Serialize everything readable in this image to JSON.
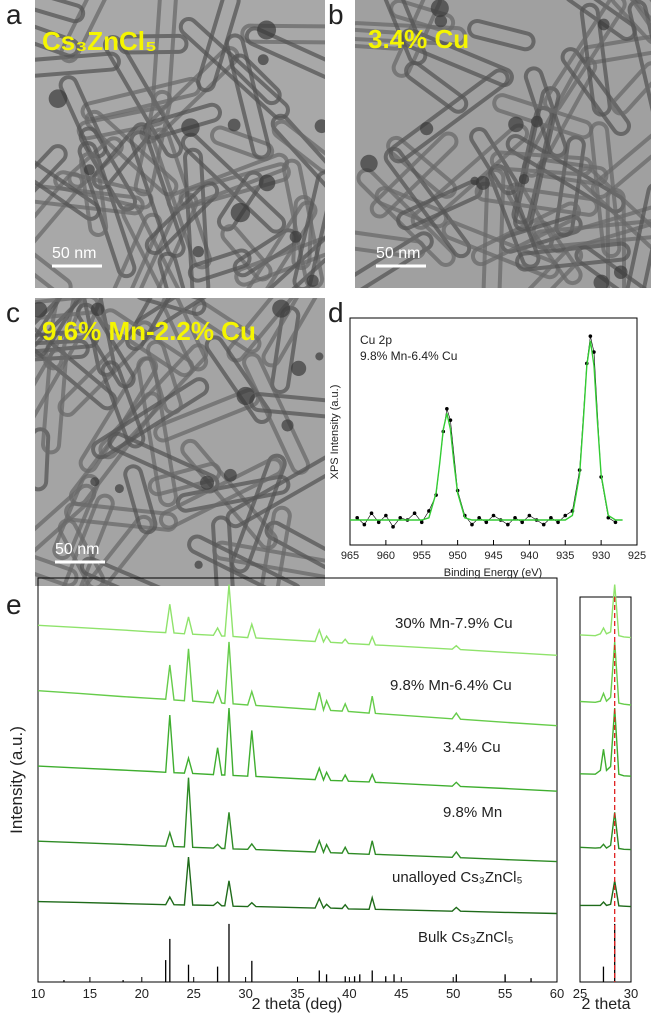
{
  "panels": {
    "a": {
      "label": "a",
      "caption": "Cs₃ZnCl₅",
      "scale_bar": "50 nm"
    },
    "b": {
      "label": "b",
      "caption": "3.4% Cu",
      "scale_bar": "50 nm"
    },
    "c": {
      "label": "c",
      "caption": "9.6% Mn-2.2% Cu",
      "scale_bar": "50 nm"
    },
    "d": {
      "label": "d"
    },
    "e": {
      "label": "e"
    }
  },
  "chart_data": [
    {
      "type": "scatter",
      "xlabel": "Binding Energy (eV)",
      "ylabel": "XPS Intensity (a.u.)",
      "annotations": [
        "Cu 2p",
        "9.8% Mn-6.4% Cu"
      ],
      "xlim": [
        965,
        925
      ],
      "xticks": [
        965,
        960,
        955,
        950,
        945,
        940,
        935,
        930,
        925
      ],
      "ylim": [
        0,
        1
      ],
      "series": [
        {
          "color": "#000000",
          "marker": true,
          "x": [
            964,
            963,
            962,
            961,
            960,
            959,
            958,
            957,
            956,
            955,
            954,
            953,
            952,
            951.5,
            951,
            950,
            949,
            948,
            947,
            946,
            945,
            944,
            943,
            942,
            941,
            940,
            939,
            938,
            937,
            936,
            935,
            934,
            933,
            932,
            931.5,
            931,
            930,
            929,
            928
          ],
          "values": [
            0.12,
            0.09,
            0.14,
            0.1,
            0.13,
            0.08,
            0.12,
            0.11,
            0.14,
            0.1,
            0.15,
            0.22,
            0.5,
            0.6,
            0.55,
            0.24,
            0.13,
            0.09,
            0.12,
            0.1,
            0.13,
            0.11,
            0.09,
            0.12,
            0.1,
            0.13,
            0.11,
            0.09,
            0.12,
            0.1,
            0.13,
            0.15,
            0.33,
            0.8,
            0.92,
            0.85,
            0.3,
            0.12,
            0.1
          ]
        },
        {
          "color": "#33cc33",
          "x": [
            965,
            955,
            954,
            953,
            952.5,
            952,
            951.5,
            951,
            950.5,
            950,
            949,
            948,
            935,
            934,
            933,
            932.5,
            932,
            931.5,
            931,
            930.5,
            930,
            929,
            928,
            927
          ],
          "values": [
            0.11,
            0.11,
            0.12,
            0.23,
            0.36,
            0.51,
            0.58,
            0.51,
            0.36,
            0.23,
            0.12,
            0.11,
            0.11,
            0.13,
            0.31,
            0.54,
            0.79,
            0.9,
            0.79,
            0.54,
            0.31,
            0.13,
            0.11,
            0.11
          ]
        }
      ]
    },
    {
      "type": "line",
      "xlabel": "2 theta (deg)",
      "ylabel": "Intensity (a.u.)",
      "xlim": [
        10,
        60
      ],
      "xticks": [
        10,
        15,
        20,
        25,
        30,
        35,
        40,
        45,
        50,
        55,
        60
      ],
      "ylim": [
        0,
        10.5
      ],
      "x": [
        10,
        14,
        18,
        21,
        22.3,
        22.7,
        23.1,
        24.1,
        24.5,
        24.9,
        26.9,
        27.3,
        27.7,
        28.0,
        28.4,
        28.8,
        30.2,
        30.6,
        31.0,
        36.7,
        37.1,
        37.5,
        37.8,
        38.2,
        39.3,
        39.6,
        39.9,
        41.9,
        42.2,
        42.5,
        49.9,
        50.3,
        50.7,
        55,
        60
      ],
      "series": [
        {
          "name": "30% Mn-7.9% Cu",
          "color": "#8fe36b",
          "values": [
            9.27,
            9.21,
            9.15,
            9.1,
            9.08,
            9.82,
            9.07,
            9.05,
            9.49,
            9.04,
            9.01,
            9.2,
            8.99,
            8.99,
            10.33,
            8.98,
            8.95,
            9.3,
            8.94,
            8.85,
            9.15,
            8.84,
            8.99,
            8.83,
            8.81,
            8.91,
            8.8,
            8.77,
            8.97,
            8.76,
            8.65,
            8.74,
            8.64,
            8.57,
            8.49
          ]
        },
        {
          "name": "9.8% Mn-6.4% Cu",
          "color": "#66cc4a",
          "values": [
            7.57,
            7.5,
            7.42,
            7.37,
            7.35,
            8.24,
            7.33,
            7.31,
            8.66,
            7.3,
            7.26,
            7.56,
            7.25,
            7.24,
            8.84,
            7.23,
            7.2,
            7.55,
            7.19,
            7.08,
            7.53,
            7.07,
            7.31,
            7.06,
            7.04,
            7.23,
            7.03,
            6.99,
            7.43,
            6.98,
            6.84,
            6.99,
            6.83,
            6.75,
            6.66
          ]
        },
        {
          "name": "3.4% Cu",
          "color": "#3fae2f",
          "values": [
            5.61,
            5.56,
            5.51,
            5.47,
            5.45,
            6.94,
            5.44,
            5.43,
            5.82,
            5.42,
            5.39,
            6.09,
            5.38,
            5.38,
            7.12,
            5.37,
            5.35,
            6.54,
            5.34,
            5.26,
            5.56,
            5.25,
            5.45,
            5.24,
            5.23,
            5.38,
            5.22,
            5.2,
            5.39,
            5.19,
            5.09,
            5.19,
            5.08,
            5.03,
            4.96
          ]
        },
        {
          "name": "9.8% Mn",
          "color": "#2e8b25",
          "values": [
            3.66,
            3.62,
            3.58,
            3.54,
            3.53,
            3.88,
            3.52,
            3.51,
            5.31,
            3.5,
            3.48,
            3.58,
            3.47,
            3.47,
            4.41,
            3.46,
            3.45,
            3.59,
            3.44,
            3.38,
            3.67,
            3.37,
            3.57,
            3.36,
            3.35,
            3.5,
            3.34,
            3.32,
            3.67,
            3.32,
            3.24,
            3.38,
            3.23,
            3.18,
            3.13
          ]
        },
        {
          "name": "unalloyed Cs₃ZnCl₅",
          "color": "#1f6b1a",
          "values": [
            2.09,
            2.07,
            2.04,
            2.02,
            2.01,
            2.21,
            2.01,
            2.0,
            3.25,
            2.0,
            1.99,
            2.08,
            1.98,
            1.98,
            2.63,
            1.97,
            1.96,
            2.06,
            1.96,
            1.92,
            2.17,
            1.92,
            2.02,
            1.92,
            1.91,
            2.01,
            1.9,
            1.89,
            2.19,
            1.89,
            1.84,
            1.94,
            1.84,
            1.81,
            1.78
          ]
        },
        {
          "name": "Bulk Cs₃ZnCl₅",
          "color": "#000000",
          "style": "stem",
          "x": [
            12.5,
            18.2,
            22.3,
            22.7,
            24.5,
            27.3,
            28.4,
            30.6,
            37.1,
            37.8,
            39.6,
            40.5,
            41.0,
            42.2,
            43.5,
            44.3,
            50.3,
            55.0,
            57.5
          ],
          "values": [
            0.05,
            0.05,
            0.57,
            1.12,
            0.45,
            0.4,
            1.51,
            0.55,
            0.3,
            0.2,
            0.15,
            0.15,
            0.2,
            0.3,
            0.15,
            0.2,
            0.2,
            0.2,
            0.1
          ]
        }
      ]
    },
    {
      "type": "line",
      "xlabel": "2 theta",
      "xlim": [
        25,
        30
      ],
      "xticks": [
        25,
        30
      ],
      "ylim": [
        0,
        10.5
      ],
      "ref_line": 28.4,
      "ref_color": "#e02020",
      "x": [
        25,
        26.5,
        27.0,
        27.3,
        27.6,
        28.0,
        28.4,
        28.8,
        29.3,
        30
      ],
      "series": [
        {
          "color": "#8fe36b",
          "values": [
            9.02,
            9.0,
            9.05,
            9.2,
            9.05,
            9.1,
            10.33,
            9.0,
            8.97,
            8.95
          ]
        },
        {
          "color": "#66cc4a",
          "values": [
            7.29,
            7.27,
            7.3,
            7.5,
            7.3,
            7.4,
            8.84,
            7.25,
            7.22,
            7.2
          ]
        },
        {
          "color": "#3fae2f",
          "values": [
            5.41,
            5.4,
            5.5,
            6.05,
            5.5,
            5.6,
            7.12,
            5.4,
            5.36,
            5.35
          ]
        },
        {
          "color": "#2e8b25",
          "values": [
            3.5,
            3.48,
            3.49,
            3.58,
            3.48,
            3.55,
            4.41,
            3.47,
            3.45,
            3.44
          ]
        },
        {
          "color": "#1f6b1a",
          "values": [
            1.99,
            1.99,
            1.99,
            2.08,
            1.99,
            2.02,
            2.63,
            1.98,
            1.97,
            1.96
          ]
        },
        {
          "color": "#000000",
          "style": "stem",
          "x": [
            27.3,
            28.4
          ],
          "values": [
            0.4,
            1.51
          ]
        }
      ]
    }
  ]
}
